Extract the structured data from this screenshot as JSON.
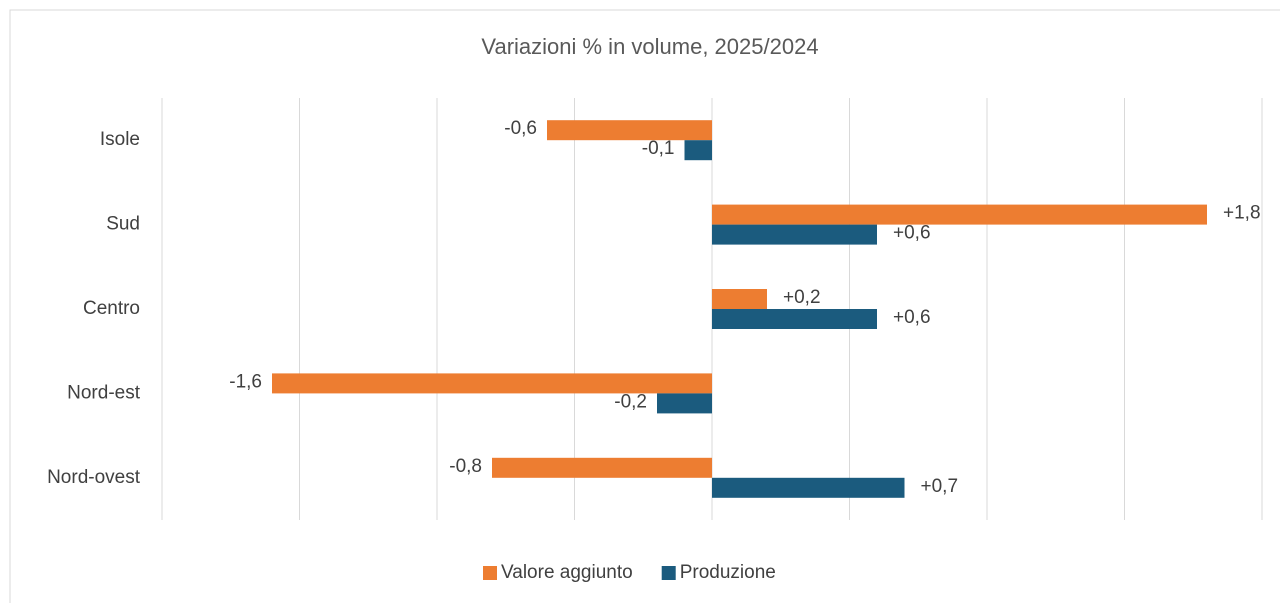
{
  "chart_data": {
    "type": "bar",
    "orientation": "horizontal",
    "title": "Variazioni  % in volume, 2025/2024",
    "categories": [
      "Isole",
      "Sud",
      "Centro",
      "Nord-est",
      "Nord-ovest"
    ],
    "series": [
      {
        "name": "Valore aggiunto",
        "color": "#ed7d31",
        "values": [
          -0.6,
          1.8,
          0.2,
          -1.6,
          -0.8
        ],
        "value_labels": [
          "-0,6",
          "+1,8",
          "+0,2",
          "-1,6",
          "-0,8"
        ]
      },
      {
        "name": "Produzione",
        "color": "#1b5b7e",
        "values": [
          -0.1,
          0.6,
          0.6,
          -0.2,
          0.7
        ],
        "value_labels": [
          "-0,1",
          "+0,6",
          "+0,6",
          "-0,2",
          "+0,7"
        ]
      }
    ],
    "xlim": [
      -2,
      2
    ],
    "xticks": [
      -2,
      -1.5,
      -1,
      -0.5,
      0,
      0.5,
      1,
      1.5,
      2
    ],
    "grid": true,
    "legend": "bottom"
  }
}
